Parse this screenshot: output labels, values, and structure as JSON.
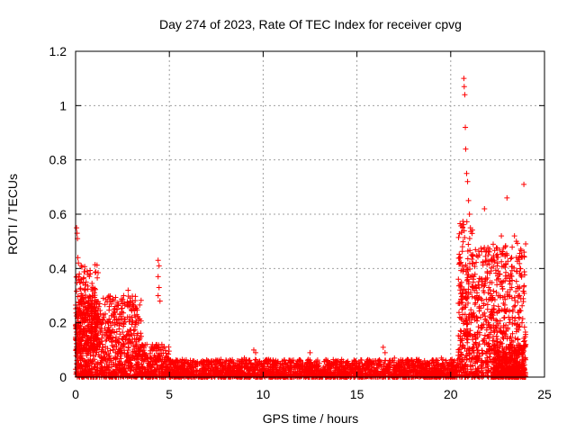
{
  "chart_data": {
    "type": "scatter",
    "title": "Day 274 of 2023, Rate Of TEC Index for receiver cpvg",
    "xlabel": "GPS time / hours",
    "ylabel": "ROTI / TECUs",
    "xlim": [
      0,
      25
    ],
    "ylim": [
      0,
      1.2
    ],
    "xticks": [
      0,
      5,
      10,
      15,
      20,
      25
    ],
    "yticks": [
      0,
      0.2,
      0.4,
      0.6,
      0.8,
      1,
      1.2
    ],
    "xtick_labels": [
      "0",
      "5",
      "10",
      "15",
      "20",
      "25"
    ],
    "ytick_labels": [
      "0",
      "0.2",
      "0.4",
      "0.6",
      "0.8",
      "1",
      "1.2"
    ],
    "grid": true,
    "marker": "+",
    "color": "#ff0000",
    "series": [
      {
        "points": [
          [
            0.05,
            0.55
          ],
          [
            0.08,
            0.53
          ],
          [
            0.1,
            0.51
          ],
          [
            0.12,
            0.44
          ],
          [
            0.15,
            0.42
          ],
          [
            0.2,
            0.38
          ],
          [
            0.25,
            0.35
          ],
          [
            0.3,
            0.3
          ],
          [
            0.35,
            0.27
          ],
          [
            0.5,
            0.22
          ],
          [
            0.7,
            0.18
          ],
          [
            0.9,
            0.2
          ],
          [
            1.0,
            0.15
          ],
          [
            1.2,
            0.12
          ],
          [
            1.5,
            0.22
          ],
          [
            1.8,
            0.26
          ],
          [
            2.0,
            0.28
          ],
          [
            2.2,
            0.25
          ],
          [
            2.5,
            0.27
          ],
          [
            2.8,
            0.32
          ],
          [
            3.0,
            0.22
          ],
          [
            3.2,
            0.2
          ],
          [
            3.5,
            0.15
          ],
          [
            3.8,
            0.12
          ],
          [
            4.2,
            0.08
          ],
          [
            4.4,
            0.43
          ],
          [
            4.45,
            0.41
          ],
          [
            4.4,
            0.37
          ],
          [
            4.45,
            0.33
          ],
          [
            4.4,
            0.3
          ],
          [
            4.5,
            0.28
          ],
          [
            4.6,
            0.12
          ],
          [
            5.0,
            0.06
          ],
          [
            6.0,
            0.05
          ],
          [
            7.0,
            0.06
          ],
          [
            8.0,
            0.05
          ],
          [
            9.0,
            0.07
          ],
          [
            9.5,
            0.1
          ],
          [
            9.6,
            0.09
          ],
          [
            10.0,
            0.04
          ],
          [
            11.0,
            0.05
          ],
          [
            12.0,
            0.06
          ],
          [
            12.5,
            0.09
          ],
          [
            13.0,
            0.05
          ],
          [
            14.0,
            0.06
          ],
          [
            15.0,
            0.05
          ],
          [
            16.0,
            0.06
          ],
          [
            16.4,
            0.11
          ],
          [
            16.5,
            0.09
          ],
          [
            17.0,
            0.07
          ],
          [
            18.0,
            0.05
          ],
          [
            19.0,
            0.06
          ],
          [
            19.5,
            0.07
          ],
          [
            20.0,
            0.04
          ],
          [
            20.2,
            0.06
          ],
          [
            20.4,
            0.08
          ],
          [
            20.5,
            0.15
          ],
          [
            20.6,
            0.25
          ],
          [
            20.7,
            1.1
          ],
          [
            20.72,
            1.07
          ],
          [
            20.75,
            1.04
          ],
          [
            20.78,
            0.92
          ],
          [
            20.8,
            0.84
          ],
          [
            20.85,
            0.75
          ],
          [
            20.9,
            0.72
          ],
          [
            20.95,
            0.65
          ],
          [
            21.0,
            0.6
          ],
          [
            21.05,
            0.55
          ],
          [
            21.1,
            0.45
          ],
          [
            21.2,
            0.35
          ],
          [
            21.4,
            0.3
          ],
          [
            21.6,
            0.22
          ],
          [
            21.8,
            0.62
          ],
          [
            22.0,
            0.15
          ],
          [
            22.2,
            0.3
          ],
          [
            22.5,
            0.42
          ],
          [
            22.7,
            0.52
          ],
          [
            22.9,
            0.45
          ],
          [
            23.0,
            0.66
          ],
          [
            23.2,
            0.38
          ],
          [
            23.4,
            0.52
          ],
          [
            23.5,
            0.5
          ],
          [
            23.6,
            0.3
          ],
          [
            23.7,
            0.4
          ],
          [
            23.8,
            0.2
          ],
          [
            23.9,
            0.71
          ],
          [
            24.0,
            0.12
          ]
        ],
        "density_bands": [
          {
            "x": [
              0.0,
              3.5
            ],
            "y": [
              0.0,
              0.3
            ],
            "count": 900
          },
          {
            "x": [
              0.0,
              1.2
            ],
            "y": [
              0.1,
              0.42
            ],
            "count": 250
          },
          {
            "x": [
              3.5,
              5.0
            ],
            "y": [
              0.0,
              0.12
            ],
            "count": 250
          },
          {
            "x": [
              5.0,
              20.4
            ],
            "y": [
              0.0,
              0.065
            ],
            "count": 2200
          },
          {
            "x": [
              20.4,
              21.4
            ],
            "y": [
              0.0,
              0.58
            ],
            "count": 300
          },
          {
            "x": [
              21.4,
              24.0
            ],
            "y": [
              0.0,
              0.5
            ],
            "count": 650
          },
          {
            "x": [
              22.3,
              24.0
            ],
            "y": [
              0.0,
              0.12
            ],
            "count": 350
          }
        ]
      }
    ]
  }
}
